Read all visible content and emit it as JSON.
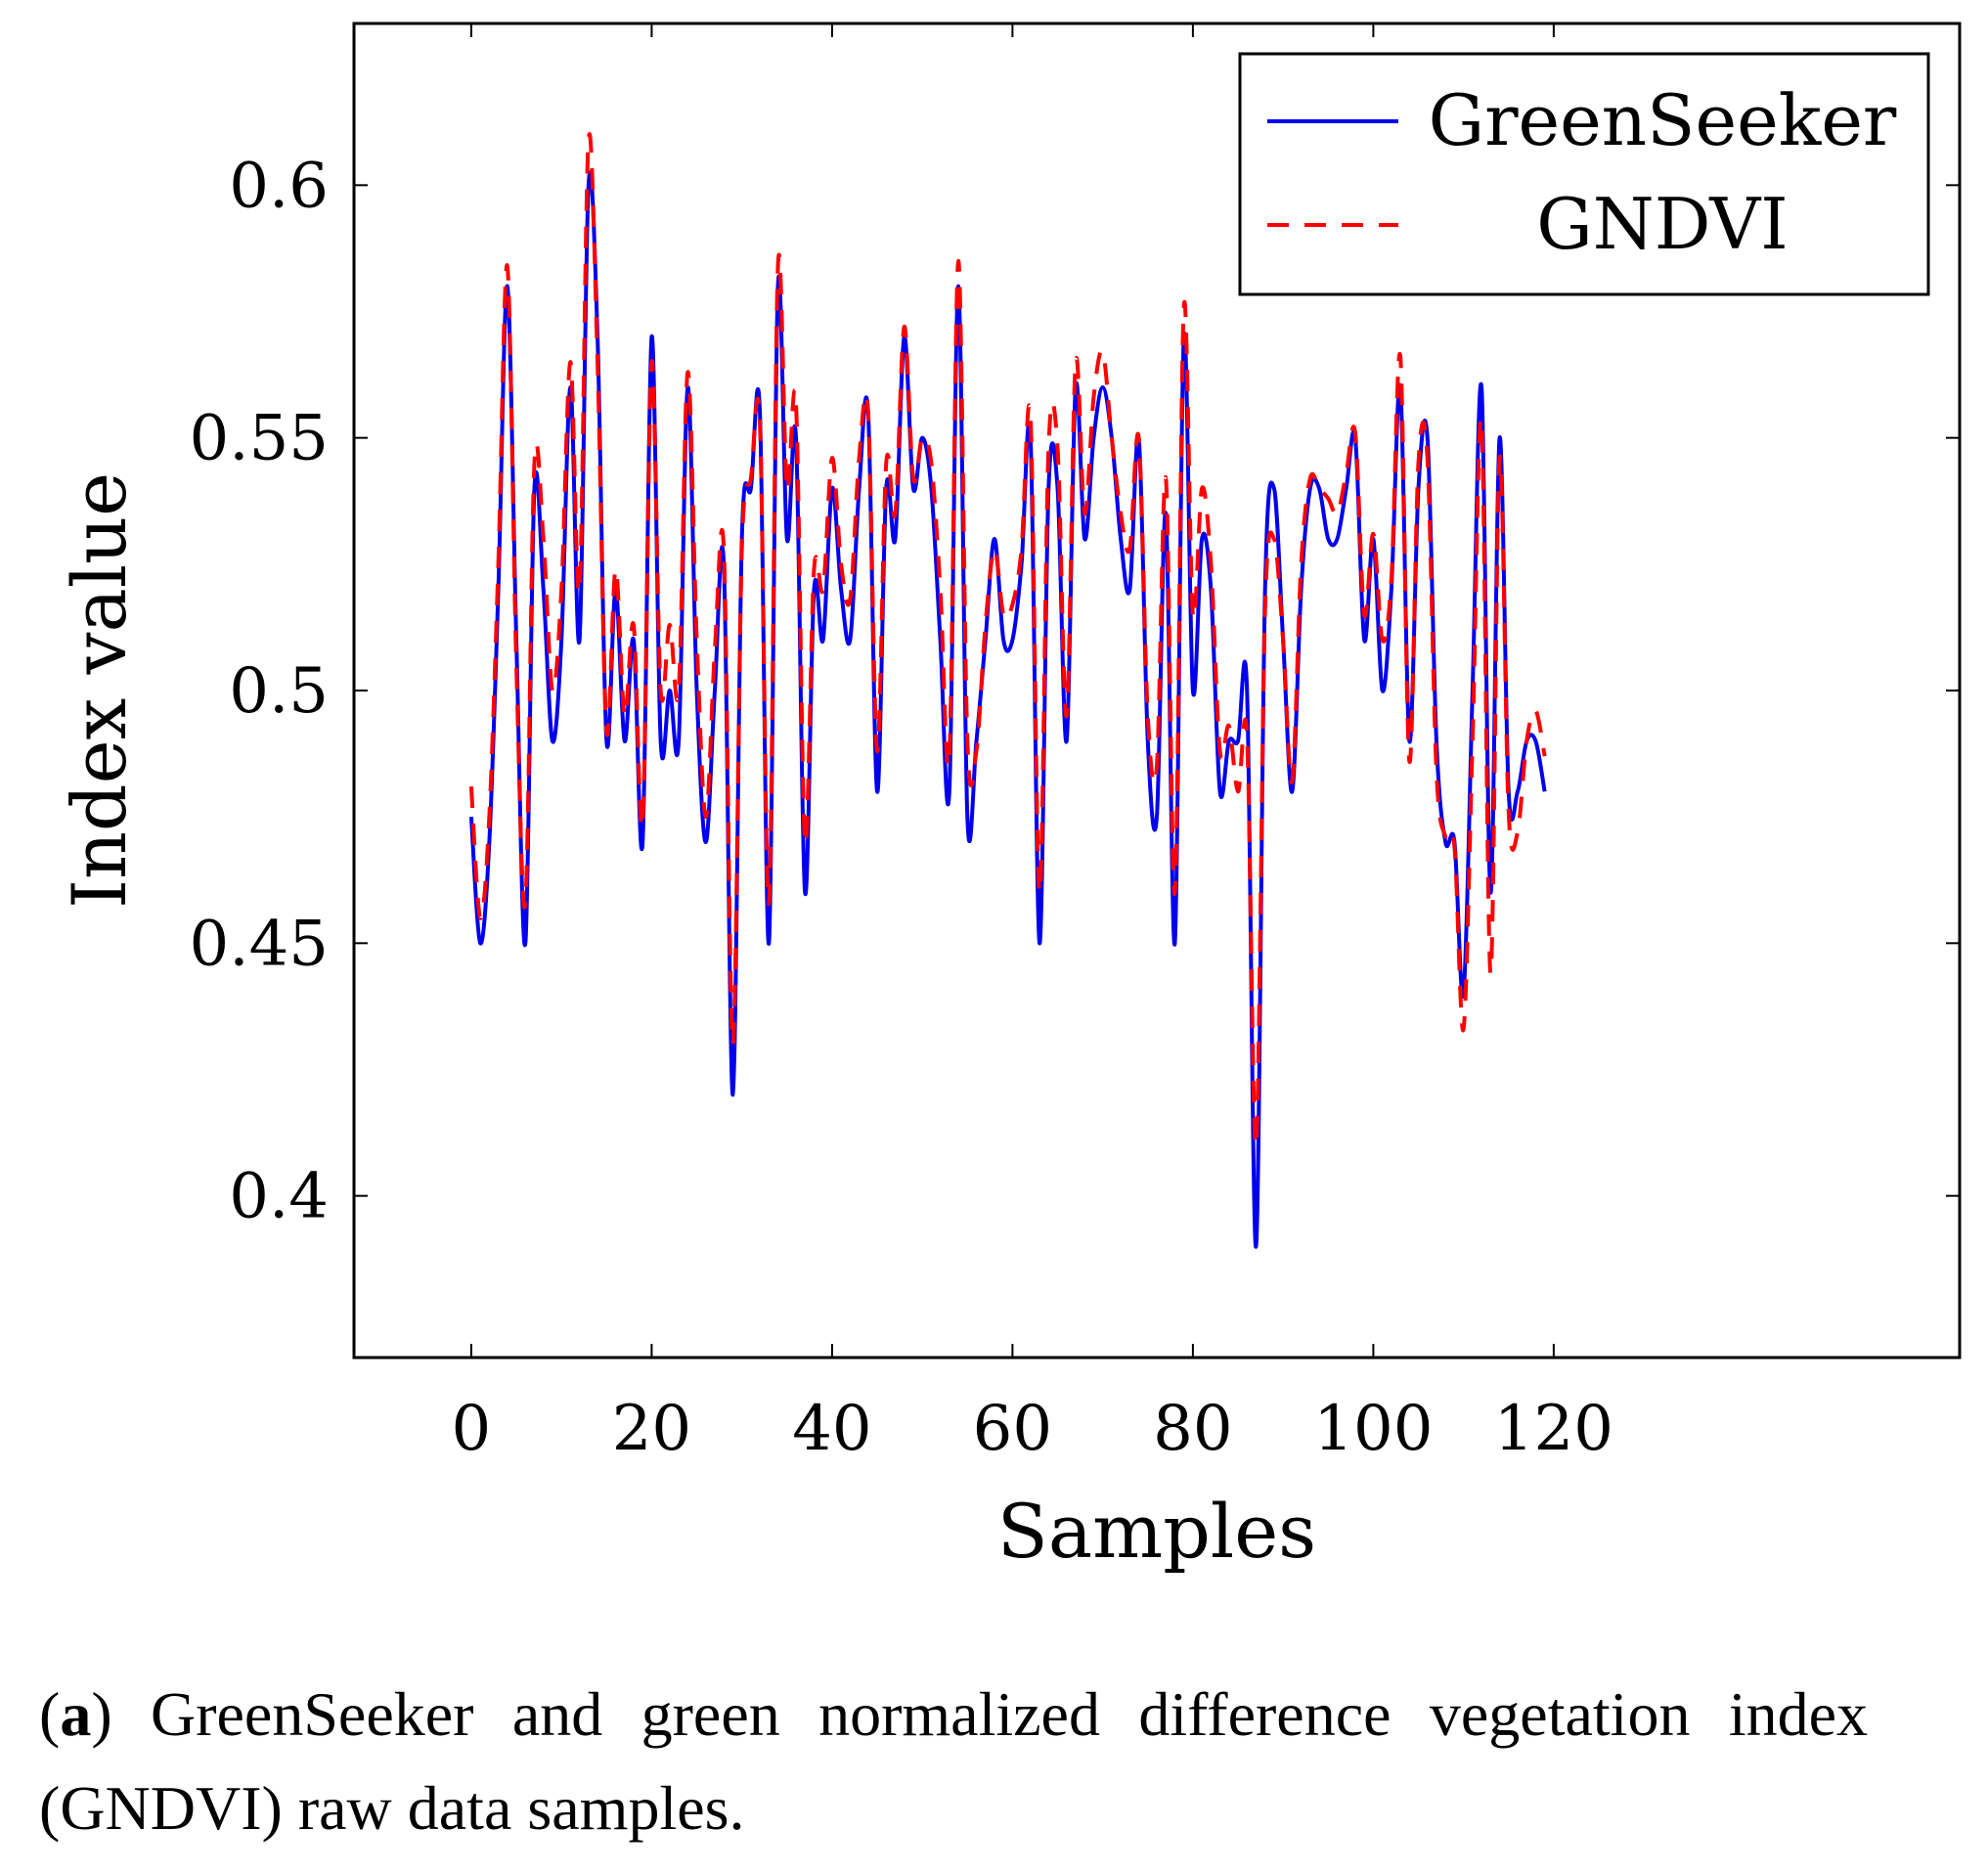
{
  "chart_data": {
    "type": "line",
    "xlabel": "Samples",
    "ylabel": "Index value",
    "xlim": [
      -13,
      165
    ],
    "ylim": [
      0.368,
      0.632
    ],
    "xticks": [
      0,
      20,
      40,
      60,
      80,
      100,
      120
    ],
    "xtick_labels": [
      "0",
      "20",
      "40",
      "60",
      "80",
      "100",
      "120"
    ],
    "yticks": [
      0.4,
      0.45,
      0.5,
      0.55,
      0.6
    ],
    "ytick_labels": [
      "0.4",
      "0.45",
      "0.5",
      "0.55",
      "0.6"
    ],
    "legend_position": "top-right",
    "grid": false,
    "series": [
      {
        "name": "GreenSeeker",
        "color": "#0000ee",
        "dash": "solid",
        "x": [
          0,
          1,
          2,
          3,
          4,
          5,
          6,
          7,
          8,
          9,
          10,
          11,
          12,
          13,
          14,
          15,
          16,
          17,
          18,
          19,
          20,
          21,
          22,
          23,
          24,
          25,
          26,
          27,
          28,
          29,
          30,
          31,
          32,
          33,
          34,
          35,
          36,
          37,
          38,
          39,
          40,
          41,
          42,
          43,
          44,
          45,
          46,
          47,
          48,
          49,
          50,
          51,
          52,
          53,
          54,
          55,
          56,
          57,
          58,
          59,
          60,
          61,
          62,
          63,
          64,
          65,
          66,
          67,
          68,
          69,
          70,
          71,
          72,
          73,
          74,
          75,
          76,
          77,
          78,
          79,
          80,
          81,
          82,
          83,
          84,
          85,
          86,
          87,
          88,
          89,
          90,
          91,
          92,
          93,
          94,
          95,
          96,
          97,
          98,
          99,
          100,
          101,
          102,
          103,
          104,
          105,
          106,
          107,
          108,
          109,
          110,
          111,
          112,
          113,
          114,
          115,
          116,
          117,
          118,
          119
        ],
        "values": [
          0.475,
          0.45,
          0.47,
          0.52,
          0.58,
          0.51,
          0.45,
          0.54,
          0.52,
          0.49,
          0.51,
          0.56,
          0.51,
          0.6,
          0.57,
          0.49,
          0.52,
          0.49,
          0.51,
          0.47,
          0.57,
          0.49,
          0.5,
          0.49,
          0.56,
          0.5,
          0.47,
          0.5,
          0.525,
          0.42,
          0.53,
          0.54,
          0.555,
          0.45,
          0.58,
          0.53,
          0.55,
          0.46,
          0.52,
          0.51,
          0.54,
          0.52,
          0.51,
          0.54,
          0.555,
          0.48,
          0.54,
          0.53,
          0.57,
          0.54,
          0.55,
          0.54,
          0.51,
          0.48,
          0.58,
          0.475,
          0.49,
          0.51,
          0.53,
          0.51,
          0.51,
          0.525,
          0.55,
          0.45,
          0.54,
          0.54,
          0.49,
          0.56,
          0.53,
          0.55,
          0.56,
          0.55,
          0.53,
          0.52,
          0.55,
          0.49,
          0.475,
          0.535,
          0.45,
          0.57,
          0.5,
          0.53,
          0.52,
          0.48,
          0.49,
          0.49,
          0.5,
          0.39,
          0.52,
          0.54,
          0.51,
          0.48,
          0.52,
          0.54,
          0.54,
          0.53,
          0.53,
          0.54,
          0.55,
          0.51,
          0.53,
          0.5,
          0.52,
          0.56,
          0.49,
          0.54,
          0.55,
          0.49,
          0.47,
          0.47,
          0.44,
          0.5,
          0.56,
          0.46,
          0.55,
          0.48,
          0.48,
          0.49,
          0.49,
          0.48
        ]
      },
      {
        "name": "GNDVI",
        "color": "#ff0000",
        "dash": "dashed",
        "x": [
          0,
          1,
          2,
          3,
          4,
          5,
          6,
          7,
          8,
          9,
          10,
          11,
          12,
          13,
          14,
          15,
          16,
          17,
          18,
          19,
          20,
          21,
          22,
          23,
          24,
          25,
          26,
          27,
          28,
          29,
          30,
          31,
          32,
          33,
          34,
          35,
          36,
          37,
          38,
          39,
          40,
          41,
          42,
          43,
          44,
          45,
          46,
          47,
          48,
          49,
          50,
          51,
          52,
          53,
          54,
          55,
          56,
          57,
          58,
          59,
          60,
          61,
          62,
          63,
          64,
          65,
          66,
          67,
          68,
          69,
          70,
          71,
          72,
          73,
          74,
          75,
          76,
          77,
          78,
          79,
          80,
          81,
          82,
          83,
          84,
          85,
          86,
          87,
          88,
          89,
          90,
          91,
          92,
          93,
          94,
          95,
          96,
          97,
          98,
          99,
          100,
          101,
          102,
          103,
          104,
          105,
          106,
          107,
          108,
          109,
          110,
          111,
          112,
          113,
          114,
          115,
          116,
          117,
          118,
          119
        ],
        "values": [
          0.481,
          0.455,
          0.475,
          0.525,
          0.584,
          0.505,
          0.458,
          0.545,
          0.53,
          0.5,
          0.52,
          0.565,
          0.52,
          0.609,
          0.565,
          0.492,
          0.524,
          0.495,
          0.513,
          0.474,
          0.565,
          0.5,
          0.513,
          0.5,
          0.563,
          0.51,
          0.475,
          0.508,
          0.528,
          0.43,
          0.528,
          0.542,
          0.553,
          0.458,
          0.584,
          0.54,
          0.557,
          0.47,
          0.524,
          0.52,
          0.546,
          0.525,
          0.518,
          0.546,
          0.555,
          0.488,
          0.545,
          0.535,
          0.572,
          0.542,
          0.55,
          0.545,
          0.52,
          0.487,
          0.585,
          0.49,
          0.488,
          0.513,
          0.528,
          0.515,
          0.517,
          0.528,
          0.554,
          0.46,
          0.548,
          0.548,
          0.495,
          0.565,
          0.535,
          0.558,
          0.567,
          0.55,
          0.535,
          0.528,
          0.55,
          0.495,
          0.485,
          0.542,
          0.46,
          0.576,
          0.515,
          0.54,
          0.525,
          0.488,
          0.493,
          0.48,
          0.491,
          0.41,
          0.516,
          0.53,
          0.51,
          0.482,
          0.525,
          0.542,
          0.54,
          0.538,
          0.535,
          0.543,
          0.551,
          0.515,
          0.531,
          0.51,
          0.522,
          0.566,
          0.486,
          0.545,
          0.546,
          0.484,
          0.471,
          0.469,
          0.433,
          0.49,
          0.553,
          0.444,
          0.546,
          0.476,
          0.472,
          0.49,
          0.496,
          0.487
        ]
      }
    ]
  },
  "caption": {
    "label": "a",
    "open": "(",
    "close": ")",
    "text": " GreenSeeker and green normalized difference vegetation index (GNDVI) raw data samples."
  }
}
